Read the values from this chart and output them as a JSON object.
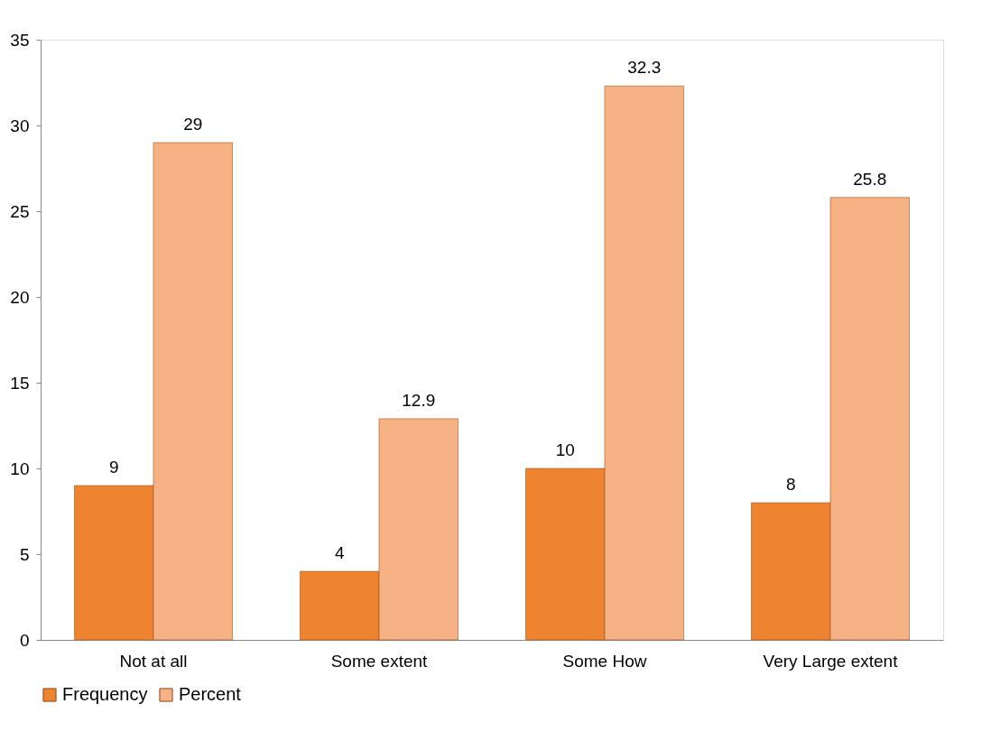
{
  "chart_data": {
    "type": "bar",
    "categories": [
      "Not at all",
      "Some extent",
      "Some How",
      "Very Large extent"
    ],
    "series": [
      {
        "name": "Frequency",
        "color": "#ee8430",
        "values": [
          9,
          4,
          10,
          8
        ]
      },
      {
        "name": "Percent",
        "color": "#f6b184",
        "values": [
          29,
          12.9,
          32.3,
          25.8
        ]
      }
    ],
    "ylim": [
      0,
      35
    ],
    "yticks": [
      0,
      5,
      10,
      15,
      20,
      25,
      30,
      35
    ],
    "grid": false,
    "legend": "bottom",
    "data_labels": true
  }
}
